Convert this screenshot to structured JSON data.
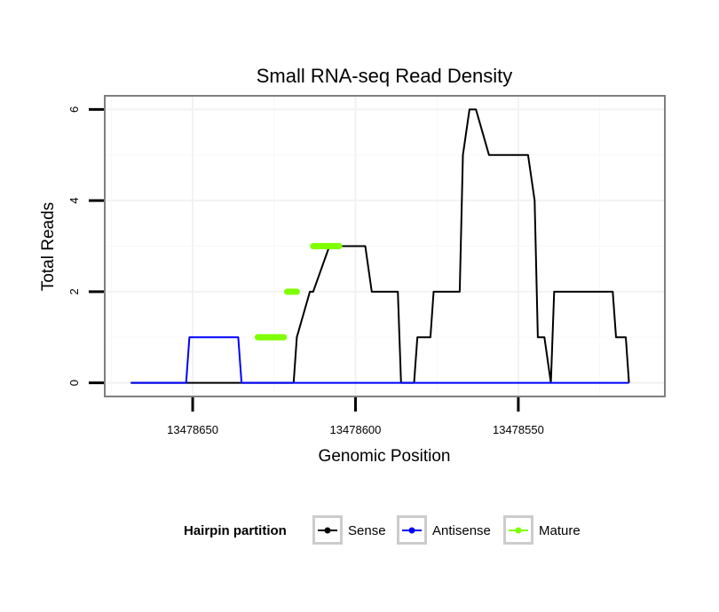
{
  "chart_data": {
    "type": "line",
    "title": "Small RNA-seq Read Density",
    "xlabel": "Genomic Position",
    "ylabel": "Total Reads",
    "x_reversed": true,
    "xlim": [
      13478677,
      13478505
    ],
    "ylim": [
      -0.3,
      6.3
    ],
    "x_ticks": [
      {
        "value": 13478650,
        "label": "13478650"
      },
      {
        "value": 13478600,
        "label": "13478600"
      },
      {
        "value": 13478550,
        "label": "13478550"
      }
    ],
    "y_ticks": [
      {
        "value": 0,
        "label": "0"
      },
      {
        "value": 2,
        "label": "2"
      },
      {
        "value": 4,
        "label": "4"
      },
      {
        "value": 6,
        "label": "6"
      }
    ],
    "grid": true,
    "legend": {
      "title": "Hairpin partition",
      "position": "bottom",
      "entries": [
        {
          "label": "Sense",
          "color": "#000000"
        },
        {
          "label": "Antisense",
          "color": "#0000ff"
        },
        {
          "label": "Mature",
          "color": "#7fff00"
        }
      ]
    },
    "series": [
      {
        "name": "Sense",
        "color": "#000000",
        "x": [
          13478669,
          13478619,
          13478618,
          13478614,
          13478613,
          13478608,
          13478597,
          13478595,
          13478587,
          13478586,
          13478582,
          13478581,
          13478577,
          13478576,
          13478568,
          13478567,
          13478565,
          13478563,
          13478559,
          13478558,
          13478547,
          13478545,
          13478544,
          13478542,
          13478540,
          13478539,
          13478521,
          13478520,
          13478517,
          13478516
        ],
        "y": [
          0,
          0,
          1,
          2,
          2,
          3,
          3,
          2,
          2,
          0,
          0,
          1,
          1,
          2,
          2,
          5,
          6,
          6,
          5,
          5,
          5,
          4,
          1,
          1,
          0,
          2,
          2,
          1,
          1,
          0
        ]
      },
      {
        "name": "Antisense",
        "color": "#0000ff",
        "x": [
          13478669,
          13478652,
          13478651,
          13478636,
          13478635,
          13478516
        ],
        "y": [
          0,
          0,
          1,
          1,
          0,
          0
        ]
      },
      {
        "name": "Mature",
        "color": "#7fff00",
        "segments": [
          {
            "x_start": 13478630,
            "x_end": 13478622,
            "y": 1
          },
          {
            "x_start": 13478621,
            "x_end": 13478618,
            "y": 2
          },
          {
            "x_start": 13478613,
            "x_end": 13478605,
            "y": 3
          }
        ]
      }
    ]
  }
}
